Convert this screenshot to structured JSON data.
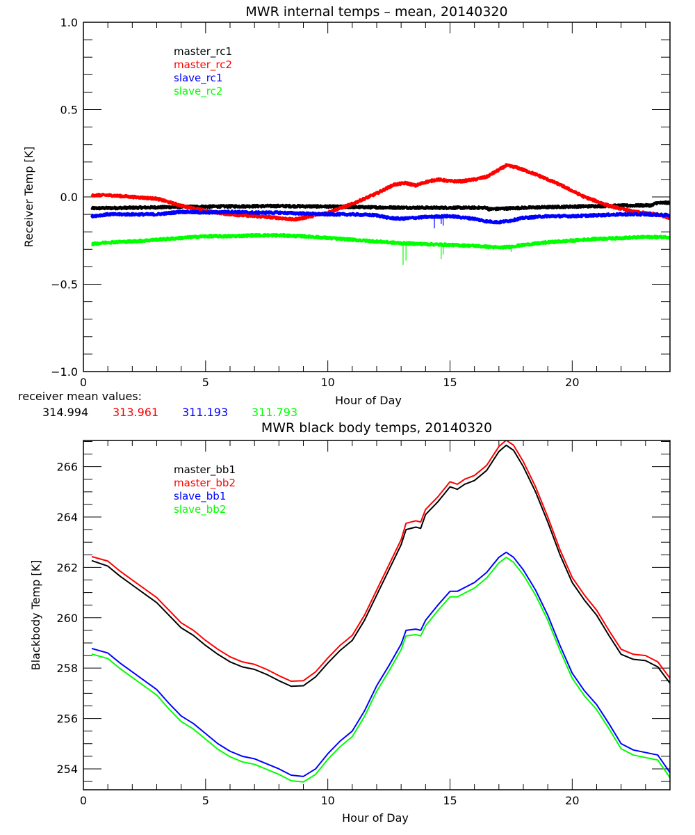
{
  "colors": {
    "black": "#000000",
    "red": "#ff0000",
    "blue": "#0000ff",
    "green": "#00ff00"
  },
  "receiver_mean": {
    "label": "receiver mean values:",
    "values": [
      {
        "text": "314.994",
        "color": "#000000"
      },
      {
        "text": "313.961",
        "color": "#ff0000"
      },
      {
        "text": "311.193",
        "color": "#0000ff"
      },
      {
        "text": "311.793",
        "color": "#00ff00"
      }
    ]
  },
  "chart_data": [
    {
      "type": "line",
      "title": "MWR internal temps – mean, 20140320",
      "xlabel": "Hour of Day",
      "ylabel": "Receiver Temp [K]",
      "xlim": [
        0,
        24
      ],
      "ylim": [
        -1.0,
        1.0
      ],
      "xticks": [
        0,
        5,
        10,
        15,
        20
      ],
      "xtick_labels": [
        "0",
        "5",
        "10",
        "15",
        "20"
      ],
      "x_minor_step": 1,
      "yticks": [
        -1.0,
        -0.5,
        0.0,
        0.5,
        1.0
      ],
      "ytick_labels": [
        "−1.0",
        "−0.5",
        "0.0",
        "0.5",
        "1.0"
      ],
      "y_minor_step": 0.1,
      "grid": false,
      "legend_placement": "top-left",
      "noise_amplitude": 0.006,
      "series": [
        {
          "name": "master_rc1",
          "color": "#000000",
          "x": [
            0.34,
            2,
            4,
            6,
            8,
            10,
            12,
            14,
            16,
            16.5,
            16.6,
            18,
            20,
            22,
            23.3,
            23.4,
            24
          ],
          "y": [
            -0.065,
            -0.062,
            -0.057,
            -0.054,
            -0.052,
            -0.055,
            -0.06,
            -0.062,
            -0.062,
            -0.062,
            -0.07,
            -0.062,
            -0.055,
            -0.05,
            -0.048,
            -0.035,
            -0.033
          ]
        },
        {
          "name": "master_rc2",
          "color": "#ff0000",
          "x": [
            0.34,
            1,
            2,
            3,
            4,
            5,
            6,
            7,
            8,
            8.6,
            9,
            10,
            11,
            12,
            12.7,
            13.2,
            13.6,
            14,
            14.5,
            15,
            15.5,
            16,
            16.5,
            17,
            17.3,
            17.7,
            18.5,
            19.5,
            20.5,
            21.5,
            22.5,
            23.5,
            24
          ],
          "y": [
            0.01,
            0.01,
            0.0,
            -0.01,
            -0.05,
            -0.08,
            -0.1,
            -0.11,
            -0.12,
            -0.13,
            -0.12,
            -0.09,
            -0.04,
            0.02,
            0.07,
            0.08,
            0.065,
            0.085,
            0.1,
            0.09,
            0.09,
            0.1,
            0.115,
            0.155,
            0.18,
            0.17,
            0.13,
            0.07,
            0.0,
            -0.05,
            -0.085,
            -0.1,
            -0.12
          ]
        },
        {
          "name": "slave_rc1",
          "color": "#0000ff",
          "x": [
            0.34,
            1,
            2,
            3,
            4,
            5,
            6,
            7,
            8,
            9,
            10,
            11,
            12,
            12.5,
            13,
            14,
            15,
            16,
            16.5,
            17,
            17.5,
            18,
            19,
            20,
            21,
            22,
            23,
            24
          ],
          "y": [
            -0.11,
            -0.1,
            -0.1,
            -0.1,
            -0.085,
            -0.09,
            -0.085,
            -0.09,
            -0.09,
            -0.095,
            -0.1,
            -0.1,
            -0.105,
            -0.12,
            -0.125,
            -0.115,
            -0.11,
            -0.125,
            -0.14,
            -0.145,
            -0.135,
            -0.12,
            -0.11,
            -0.11,
            -0.105,
            -0.1,
            -0.1,
            -0.105
          ]
        },
        {
          "name": "slave_rc2",
          "color": "#00ff00",
          "x": [
            0.34,
            1,
            2,
            3,
            4,
            5,
            6,
            7,
            8,
            9,
            10,
            11,
            12,
            13,
            14,
            15,
            16,
            17,
            17.5,
            18,
            19,
            20,
            21,
            22,
            23,
            24
          ],
          "y": [
            -0.27,
            -0.26,
            -0.255,
            -0.245,
            -0.235,
            -0.225,
            -0.225,
            -0.22,
            -0.22,
            -0.225,
            -0.235,
            -0.245,
            -0.255,
            -0.265,
            -0.27,
            -0.275,
            -0.28,
            -0.29,
            -0.285,
            -0.275,
            -0.26,
            -0.25,
            -0.24,
            -0.235,
            -0.23,
            -0.23
          ]
        }
      ],
      "spikes": [
        {
          "series": "slave_rc2",
          "x": 13.08,
          "y": -0.39
        },
        {
          "series": "slave_rc2",
          "x": 13.2,
          "y": -0.365
        },
        {
          "series": "slave_rc2",
          "x": 14.64,
          "y": -0.355
        },
        {
          "series": "slave_rc2",
          "x": 14.72,
          "y": -0.33
        },
        {
          "series": "slave_rc2",
          "x": 17.5,
          "y": -0.315
        },
        {
          "series": "slave_rc1",
          "x": 14.36,
          "y": -0.18
        },
        {
          "series": "slave_rc1",
          "x": 14.64,
          "y": -0.155
        },
        {
          "series": "slave_rc1",
          "x": 14.72,
          "y": -0.165
        }
      ]
    },
    {
      "type": "line",
      "title": "MWR black body temps, 20140320",
      "xlabel": "Hour of Day",
      "ylabel": "Blackbody Temp [K]",
      "xlim": [
        0,
        24
      ],
      "ylim": [
        253.17,
        267.04
      ],
      "xticks": [
        0,
        5,
        10,
        15,
        20
      ],
      "xtick_labels": [
        "0",
        "5",
        "10",
        "15",
        "20"
      ],
      "x_minor_step": 1,
      "yticks": [
        254,
        256,
        258,
        260,
        262,
        264,
        266
      ],
      "ytick_labels": [
        "254",
        "256",
        "258",
        "260",
        "262",
        "264",
        "266"
      ],
      "y_minor_step": 0.5,
      "grid": false,
      "legend_placement": "top-left",
      "series": [
        {
          "name": "master_bb1",
          "color": "#000000",
          "x": [
            0.34,
            1,
            1.5,
            2,
            2.5,
            3,
            3.5,
            4,
            4.5,
            5,
            5.5,
            6,
            6.5,
            7,
            7.5,
            8,
            8.5,
            9,
            9.5,
            10,
            10.5,
            11,
            11.5,
            12,
            12.5,
            13,
            13.2,
            13.6,
            13.8,
            14,
            14.5,
            15,
            15.3,
            15.6,
            16,
            16.5,
            17,
            17.3,
            17.6,
            18,
            18.5,
            19,
            19.5,
            20,
            20.5,
            21,
            21.5,
            22,
            22.5,
            23,
            23.5,
            24
          ],
          "y": [
            262.27,
            262.05,
            261.65,
            261.3,
            260.95,
            260.6,
            260.1,
            259.6,
            259.3,
            258.9,
            258.55,
            258.25,
            258.05,
            257.95,
            257.75,
            257.5,
            257.28,
            257.3,
            257.65,
            258.2,
            258.7,
            259.1,
            259.9,
            260.9,
            261.9,
            262.9,
            263.5,
            263.6,
            263.55,
            264.1,
            264.6,
            265.2,
            265.1,
            265.3,
            265.45,
            265.85,
            266.6,
            266.85,
            266.65,
            266.0,
            265.0,
            263.8,
            262.5,
            261.4,
            260.7,
            260.1,
            259.3,
            258.55,
            258.35,
            258.3,
            258.05,
            257.4
          ]
        },
        {
          "name": "master_bb2",
          "color": "#ff0000",
          "x": [
            0.34,
            1,
            1.5,
            2,
            2.5,
            3,
            3.5,
            4,
            4.5,
            5,
            5.5,
            6,
            6.5,
            7,
            7.5,
            8,
            8.5,
            9,
            9.5,
            10,
            10.5,
            11,
            11.5,
            12,
            12.5,
            13,
            13.2,
            13.6,
            13.8,
            14,
            14.5,
            15,
            15.3,
            15.6,
            16,
            16.5,
            17,
            17.3,
            17.6,
            18,
            18.5,
            19,
            19.5,
            20,
            20.5,
            21,
            21.5,
            22,
            22.5,
            23,
            23.5,
            24
          ],
          "y": [
            262.43,
            262.25,
            261.85,
            261.5,
            261.15,
            260.8,
            260.3,
            259.8,
            259.5,
            259.1,
            258.75,
            258.45,
            258.25,
            258.15,
            257.95,
            257.7,
            257.48,
            257.5,
            257.85,
            258.4,
            258.9,
            259.3,
            260.1,
            261.1,
            262.1,
            263.1,
            263.75,
            263.85,
            263.8,
            264.3,
            264.8,
            265.4,
            265.3,
            265.5,
            265.65,
            266.05,
            266.8,
            267.05,
            266.85,
            266.2,
            265.2,
            264.0,
            262.7,
            261.6,
            260.9,
            260.3,
            259.5,
            258.75,
            258.55,
            258.5,
            258.25,
            257.6
          ]
        },
        {
          "name": "slave_bb1",
          "color": "#0000ff",
          "x": [
            0.34,
            1,
            1.5,
            2,
            2.5,
            3,
            3.5,
            4,
            4.5,
            5,
            5.5,
            6,
            6.5,
            7,
            7.5,
            8,
            8.5,
            9,
            9.5,
            10,
            10.5,
            11,
            11.5,
            12,
            12.5,
            13,
            13.2,
            13.6,
            13.8,
            14,
            14.5,
            15,
            15.3,
            15.6,
            16,
            16.5,
            17,
            17.3,
            17.6,
            18,
            18.5,
            19,
            19.5,
            20,
            20.5,
            21,
            21.5,
            22,
            22.5,
            23,
            23.5,
            24
          ],
          "y": [
            258.78,
            258.6,
            258.2,
            257.85,
            257.5,
            257.15,
            256.6,
            256.1,
            255.8,
            255.4,
            255.0,
            254.7,
            254.5,
            254.4,
            254.2,
            254.0,
            253.75,
            253.7,
            254.0,
            254.6,
            255.1,
            255.5,
            256.3,
            257.3,
            258.1,
            258.95,
            259.5,
            259.55,
            259.5,
            259.9,
            260.5,
            261.05,
            261.05,
            261.2,
            261.4,
            261.8,
            262.4,
            262.6,
            262.4,
            261.9,
            261.1,
            260.1,
            258.9,
            257.8,
            257.1,
            256.55,
            255.8,
            255.0,
            254.75,
            254.65,
            254.55,
            253.85
          ]
        },
        {
          "name": "slave_bb2",
          "color": "#00ff00",
          "x": [
            0.34,
            1,
            1.5,
            2,
            2.5,
            3,
            3.5,
            4,
            4.5,
            5,
            5.5,
            6,
            6.5,
            7,
            7.5,
            8,
            8.5,
            9,
            9.5,
            10,
            10.5,
            11,
            11.5,
            12,
            12.5,
            13,
            13.2,
            13.6,
            13.8,
            14,
            14.5,
            15,
            15.3,
            15.6,
            16,
            16.5,
            17,
            17.3,
            17.6,
            18,
            18.5,
            19,
            19.5,
            20,
            20.5,
            21,
            21.5,
            22,
            22.5,
            23,
            23.5,
            24
          ],
          "y": [
            258.56,
            258.38,
            257.98,
            257.63,
            257.28,
            256.93,
            256.38,
            255.88,
            255.58,
            255.18,
            254.78,
            254.48,
            254.28,
            254.18,
            253.98,
            253.78,
            253.53,
            253.48,
            253.78,
            254.38,
            254.88,
            255.28,
            256.08,
            257.08,
            257.88,
            258.73,
            259.28,
            259.33,
            259.28,
            259.68,
            260.28,
            260.83,
            260.83,
            260.98,
            261.18,
            261.58,
            262.18,
            262.4,
            262.2,
            261.7,
            260.9,
            259.9,
            258.7,
            257.6,
            256.9,
            256.35,
            255.6,
            254.8,
            254.55,
            254.45,
            254.35,
            253.65
          ]
        }
      ]
    }
  ]
}
